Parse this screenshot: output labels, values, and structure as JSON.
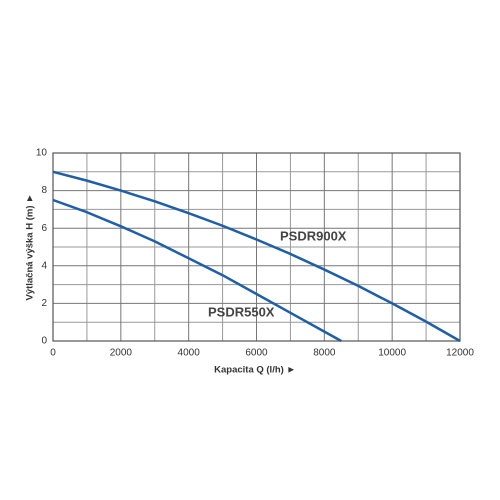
{
  "chart_data": {
    "type": "line",
    "x_label": "Kapacita Q (l/h)  ►",
    "y_label": "Výtlačná výška H (m)  ►",
    "xlim": [
      0,
      12000
    ],
    "xticks": [
      0,
      2000,
      4000,
      6000,
      8000,
      10000,
      12000
    ],
    "ylim": [
      0,
      10
    ],
    "yticks": [
      0,
      2,
      4,
      6,
      8,
      10
    ],
    "grid": true,
    "series": [
      {
        "name": "PSDR900X",
        "color": "#1f5fa8",
        "x": [
          0,
          1000,
          2000,
          3000,
          4000,
          5000,
          6000,
          7000,
          8000,
          9000,
          10000,
          11000,
          12000
        ],
        "values": [
          9,
          8.53,
          8,
          7.43,
          6.8,
          6.13,
          5.4,
          4.63,
          3.8,
          2.93,
          2,
          1.03,
          0
        ]
      },
      {
        "name": "PSDR550X",
        "color": "#1f5fa8",
        "x": [
          0,
          1000,
          2000,
          3000,
          4000,
          5000,
          6000,
          7000,
          8000,
          8500
        ],
        "values": [
          7.5,
          6.85,
          6.1,
          5.3,
          4.4,
          3.5,
          2.5,
          1.5,
          0.5,
          0
        ]
      }
    ]
  }
}
